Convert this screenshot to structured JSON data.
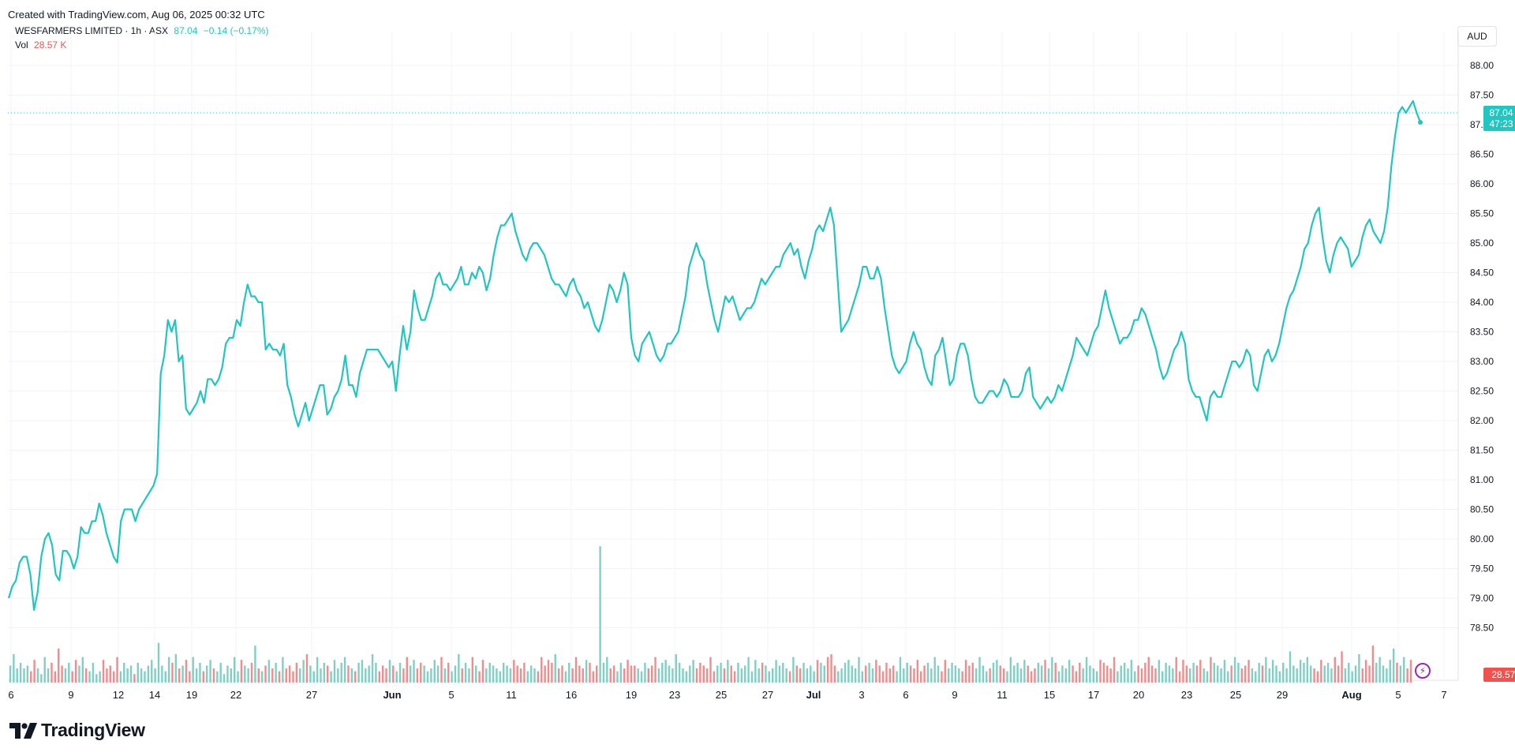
{
  "header": {
    "created": "Created with TradingView.com, Aug 06, 2025 00:32 UTC"
  },
  "legend": {
    "symbol": "WESFARMERS LIMITED · 1h · ASX",
    "last": "87.04",
    "change": "−0.14 (−0.17%)",
    "vol_label": "Vol",
    "vol_value": "28.57 K"
  },
  "currency": "AUD",
  "price_tag": {
    "price": "87.04",
    "countdown": "47:23"
  },
  "volume_tag": "28.57 K",
  "brand": "TradingView",
  "colors": {
    "line": "#22c5bf",
    "up": "#22c5bf",
    "down": "#ef5350",
    "up_volume": "#7fd0c4",
    "down_volume": "#f28b8b",
    "grid": "#f0f3fa"
  },
  "icons": [
    "tradingview-logo-icon",
    "lightning-icon"
  ],
  "chart_data": {
    "type": "line",
    "title": "WESFARMERS LIMITED · 1h · ASX",
    "y_axis": {
      "ticks": [
        "88.00",
        "87.50",
        "87.00",
        "86.50",
        "86.00",
        "85.50",
        "85.00",
        "84.50",
        "84.00",
        "83.50",
        "83.00",
        "82.50",
        "82.00",
        "81.50",
        "81.00",
        "80.50",
        "80.00",
        "79.50",
        "79.00",
        "78.50"
      ],
      "ylim": [
        78.2,
        88.2
      ],
      "side": "right"
    },
    "x_axis": {
      "ticks": [
        "6",
        "9",
        "12",
        "14",
        "19",
        "22",
        "27",
        "Jun",
        "5",
        "11",
        "16",
        "19",
        "23",
        "25",
        "27",
        "Jul",
        "3",
        "6",
        "9",
        "11",
        "15",
        "17",
        "20",
        "23",
        "25",
        "29",
        "Aug",
        "5",
        "7"
      ],
      "bold": [
        "Jun",
        "Jul",
        "Aug"
      ]
    },
    "series": [
      {
        "values": [
          79.0,
          79.2,
          79.3,
          79.6,
          79.7,
          79.7,
          79.4,
          78.8,
          79.1,
          79.7,
          80.0,
          80.1,
          79.9,
          79.4,
          79.3,
          79.8,
          79.8,
          79.7,
          79.5,
          79.7,
          80.2,
          80.1,
          80.1,
          80.3,
          80.3,
          80.6,
          80.4,
          80.1,
          79.9,
          79.7,
          79.6,
          80.3,
          80.5,
          80.5,
          80.5,
          80.3,
          80.5,
          80.6,
          80.7,
          80.8,
          80.9,
          81.1,
          82.8,
          83.1,
          83.7,
          83.5,
          83.7,
          83.0,
          83.1,
          82.2,
          82.1,
          82.2,
          82.3,
          82.5,
          82.3,
          82.7,
          82.7,
          82.6,
          82.7,
          82.9,
          83.3,
          83.4,
          83.4,
          83.7,
          83.6,
          84.0,
          84.3,
          84.1,
          84.1,
          84.0,
          84.0,
          83.2,
          83.3,
          83.2,
          83.2,
          83.1,
          83.3,
          82.6,
          82.4,
          82.1,
          81.9,
          82.1,
          82.3,
          82.0,
          82.2,
          82.4,
          82.6,
          82.6,
          82.1,
          82.2,
          82.4,
          82.5,
          82.7,
          83.1,
          82.6,
          82.6,
          82.4,
          82.8,
          83.0,
          83.2,
          83.2,
          83.2,
          83.2,
          83.1,
          83.0,
          82.9,
          83.0,
          82.5,
          83.1,
          83.6,
          83.2,
          83.5,
          84.2,
          83.9,
          83.7,
          83.7,
          83.9,
          84.1,
          84.4,
          84.5,
          84.3,
          84.3,
          84.2,
          84.3,
          84.4,
          84.6,
          84.3,
          84.3,
          84.5,
          84.4,
          84.6,
          84.5,
          84.2,
          84.4,
          84.8,
          85.1,
          85.3,
          85.3,
          85.4,
          85.5,
          85.2,
          85.0,
          84.8,
          84.7,
          84.9,
          85.0,
          85.0,
          84.9,
          84.8,
          84.6,
          84.4,
          84.3,
          84.3,
          84.2,
          84.1,
          84.3,
          84.4,
          84.2,
          84.1,
          83.9,
          84.0,
          83.8,
          83.6,
          83.5,
          83.7,
          84.0,
          84.3,
          84.2,
          84.0,
          84.2,
          84.5,
          84.3,
          83.4,
          83.1,
          83.0,
          83.3,
          83.4,
          83.5,
          83.3,
          83.1,
          83.0,
          83.1,
          83.3,
          83.3,
          83.4,
          83.5,
          83.8,
          84.1,
          84.6,
          84.8,
          85.0,
          84.8,
          84.7,
          84.3,
          84.0,
          83.7,
          83.5,
          83.8,
          84.1,
          84.0,
          84.1,
          83.9,
          83.7,
          83.8,
          83.9,
          83.9,
          84.0,
          84.2,
          84.4,
          84.3,
          84.4,
          84.5,
          84.6,
          84.6,
          84.8,
          84.9,
          85.0,
          84.8,
          84.9,
          84.6,
          84.4,
          84.7,
          84.9,
          85.2,
          85.3,
          85.2,
          85.4,
          85.6,
          85.3,
          84.4,
          83.5,
          83.6,
          83.7,
          83.9,
          84.1,
          84.3,
          84.6,
          84.6,
          84.4,
          84.4,
          84.6,
          84.4,
          83.9,
          83.5,
          83.1,
          82.9,
          82.8,
          82.9,
          83.0,
          83.3,
          83.5,
          83.3,
          83.2,
          82.9,
          82.7,
          82.6,
          83.1,
          83.2,
          83.4,
          83.0,
          82.6,
          82.7,
          83.1,
          83.3,
          83.3,
          83.1,
          82.7,
          82.4,
          82.3,
          82.3,
          82.4,
          82.5,
          82.5,
          82.4,
          82.5,
          82.7,
          82.6,
          82.4,
          82.4,
          82.4,
          82.5,
          82.8,
          82.9,
          82.4,
          82.3,
          82.2,
          82.3,
          82.4,
          82.3,
          82.4,
          82.6,
          82.5,
          82.7,
          82.9,
          83.1,
          83.4,
          83.3,
          83.2,
          83.1,
          83.3,
          83.5,
          83.6,
          83.9,
          84.2,
          83.9,
          83.7,
          83.5,
          83.3,
          83.4,
          83.4,
          83.5,
          83.7,
          83.7,
          83.9,
          83.8,
          83.6,
          83.4,
          83.2,
          82.9,
          82.7,
          82.8,
          83.0,
          83.2,
          83.3,
          83.5,
          83.3,
          82.7,
          82.5,
          82.4,
          82.4,
          82.2,
          82.0,
          82.4,
          82.5,
          82.4,
          82.4,
          82.6,
          82.8,
          83.0,
          83.0,
          82.9,
          83.0,
          83.2,
          83.1,
          82.6,
          82.5,
          82.8,
          83.1,
          83.2,
          83.0,
          83.1,
          83.3,
          83.6,
          83.9,
          84.1,
          84.2,
          84.4,
          84.6,
          84.9,
          85.0,
          85.3,
          85.5,
          85.6,
          85.1,
          84.7,
          84.5,
          84.8,
          85.0,
          85.1,
          85.0,
          84.9,
          84.6,
          84.7,
          84.8,
          85.1,
          85.3,
          85.4,
          85.2,
          85.1,
          85.0,
          85.2,
          85.6,
          86.3,
          86.8,
          87.2,
          87.3,
          87.2,
          87.3,
          87.4,
          87.2,
          87.04
        ]
      }
    ],
    "volume": [
      6,
      10,
      5,
      7,
      5,
      6,
      4,
      8,
      5,
      3,
      9,
      5,
      7,
      4,
      12,
      6,
      5,
      7,
      4,
      8,
      6,
      9,
      5,
      4,
      7,
      3,
      4,
      8,
      5,
      6,
      4,
      9,
      4,
      7,
      5,
      6,
      3,
      7,
      5,
      4,
      6,
      8,
      5,
      14,
      6,
      4,
      9,
      7,
      10,
      5,
      6,
      8,
      4,
      9,
      5,
      7,
      4,
      6,
      8,
      5,
      4,
      7,
      3,
      6,
      5,
      9,
      4,
      8,
      6,
      5,
      7,
      13,
      5,
      4,
      6,
      8,
      5,
      7,
      4,
      9,
      5,
      6,
      4,
      7,
      5,
      8,
      10,
      6,
      4,
      9,
      5,
      7,
      6,
      4,
      8,
      5,
      7,
      9,
      6,
      5,
      4,
      7,
      8,
      5,
      6,
      10,
      7,
      4,
      6,
      5,
      8,
      6,
      4,
      7,
      5,
      9,
      6,
      8,
      5,
      7,
      6,
      4,
      5,
      8,
      6,
      9,
      5,
      7,
      4,
      6,
      10,
      5,
      7,
      5,
      9,
      6,
      4,
      8,
      5,
      7,
      6,
      5,
      4,
      7,
      6,
      5,
      8,
      6,
      5,
      7,
      4,
      6,
      5,
      4,
      9,
      6,
      8,
      7,
      10,
      5,
      6,
      4,
      7,
      5,
      9,
      6,
      5,
      8,
      7,
      4,
      6,
      5,
      7,
      9,
      5,
      6,
      4,
      7,
      5,
      8,
      6,
      6,
      5,
      4,
      7,
      5,
      6,
      9,
      5,
      7,
      8,
      6,
      5,
      10,
      7,
      5,
      4,
      6,
      8,
      5,
      7,
      6,
      5,
      9,
      4,
      6,
      7,
      5,
      8,
      6,
      4,
      7,
      5,
      6,
      9,
      4,
      8,
      5,
      7,
      6,
      4,
      5,
      8,
      6,
      7,
      5,
      4,
      9,
      6,
      5,
      7,
      5,
      6,
      4,
      8,
      7,
      6,
      9,
      10,
      6,
      4,
      5,
      7,
      8,
      6,
      5,
      9,
      4,
      6,
      7,
      5,
      8,
      6,
      4,
      7,
      5,
      6,
      4,
      9,
      5,
      7,
      6,
      5,
      8,
      4,
      6,
      7,
      5,
      9,
      6,
      4,
      8,
      5,
      7,
      6,
      5,
      4,
      8,
      6,
      7,
      5,
      9,
      6,
      4,
      5,
      7,
      8,
      6,
      5,
      4,
      9,
      6,
      7,
      5,
      8,
      6,
      4,
      5,
      7,
      6,
      8,
      5,
      9,
      7,
      4,
      6,
      5,
      8,
      6,
      4,
      7,
      5,
      9,
      6,
      5,
      4,
      8,
      7,
      6,
      5,
      9,
      4,
      6,
      7,
      5,
      8,
      4,
      6,
      5,
      7,
      9,
      6,
      5,
      8,
      4,
      7,
      6,
      5,
      9,
      4,
      8,
      6,
      5,
      7,
      6,
      8,
      5,
      4,
      9,
      7,
      6,
      5,
      8,
      4,
      6,
      9,
      7,
      5,
      6,
      8,
      5,
      4,
      7,
      6,
      9,
      5,
      8,
      6,
      4,
      7,
      5,
      11,
      6,
      5,
      8,
      7,
      9,
      6,
      5,
      4,
      8,
      6,
      7,
      5,
      9,
      6,
      11,
      5,
      7,
      4,
      6,
      10,
      5,
      8,
      6,
      13,
      7,
      9,
      6,
      5,
      8,
      12,
      7,
      6,
      9,
      5,
      8
    ],
    "volume_spikes": [
      {
        "index": 171,
        "value": 48
      }
    ]
  }
}
